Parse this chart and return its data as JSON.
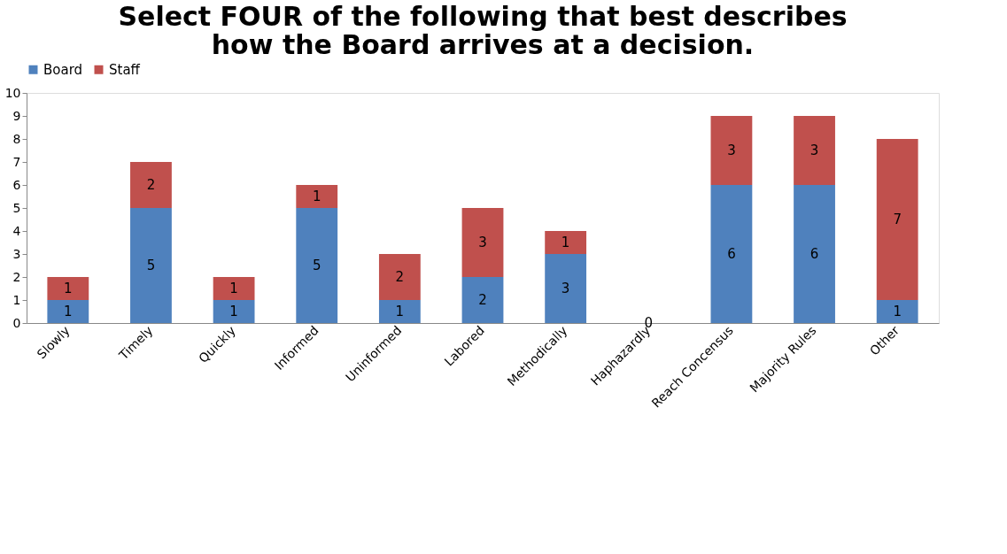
{
  "chart_data": {
    "type": "bar",
    "title": "Select FOUR of the following that best describes\nhow the Board arrives at a decision.",
    "categories": [
      "Slowly",
      "Timely",
      "Quickly",
      "Informed",
      "Uninformed",
      "Labored",
      "Methodically",
      "Haphazardly",
      "Reach Concensus",
      "Majority Rules",
      "Other"
    ],
    "stacked": true,
    "series": [
      {
        "name": "Board",
        "color": "#4f81bd",
        "values": [
          1,
          5,
          1,
          5,
          1,
          2,
          3,
          0,
          6,
          6,
          1
        ]
      },
      {
        "name": "Staff",
        "color": "#c0504d",
        "values": [
          1,
          2,
          1,
          1,
          2,
          3,
          1,
          null,
          3,
          3,
          7
        ]
      }
    ],
    "ylim": [
      0,
      10
    ],
    "yticks": [
      0,
      1,
      2,
      3,
      4,
      5,
      6,
      7,
      8,
      9,
      10
    ],
    "grid": false,
    "legend": "top",
    "data_labels": true
  }
}
